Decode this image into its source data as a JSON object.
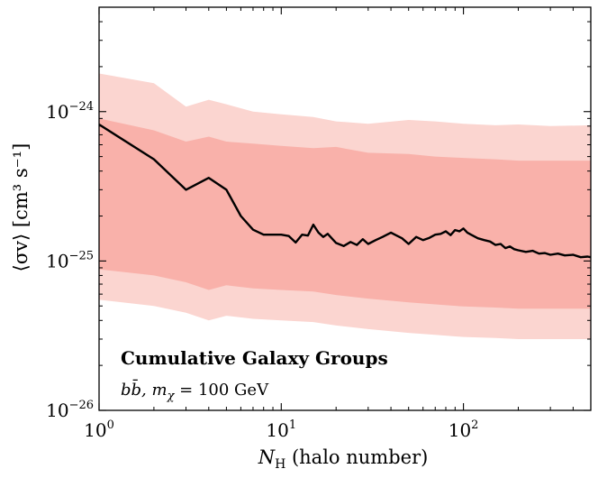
{
  "chart_data": {
    "type": "line",
    "title": "Cumulative Galaxy Groups",
    "subtitle": "bb̄, m_χ = 100 GeV",
    "xlabel": "N_H (halo number)",
    "ylabel": "⟨σv⟩ [cm³ s⁻¹]",
    "xscale": "log",
    "yscale": "log",
    "xlim": [
      1,
      500
    ],
    "ylim": [
      1e-26,
      5e-24
    ],
    "grid": false,
    "x_ticks": [
      {
        "value": 1,
        "label": "10^0"
      },
      {
        "value": 10,
        "label": "10^1"
      },
      {
        "value": 100,
        "label": "10^2"
      }
    ],
    "y_ticks": [
      {
        "value": 1e-26,
        "label": "10^-26"
      },
      {
        "value": 1e-25,
        "label": "10^-25"
      },
      {
        "value": 1e-24,
        "label": "10^-24"
      }
    ],
    "colors": {
      "line": "#000000",
      "band_outer": "#fbd5d0",
      "band_inner": "#f9b1aa"
    },
    "series": [
      {
        "kind": "median",
        "x": [
          1,
          2,
          3,
          4,
          5,
          6,
          7,
          8,
          9,
          10,
          11,
          12,
          13,
          14,
          15,
          16,
          17,
          18,
          20,
          22,
          24,
          26,
          28,
          30,
          33,
          36,
          40,
          43,
          46,
          50,
          55,
          60,
          65,
          70,
          75,
          80,
          85,
          90,
          95,
          100,
          105,
          110,
          120,
          130,
          140,
          150,
          160,
          170,
          180,
          190,
          200,
          220,
          240,
          260,
          280,
          300,
          330,
          360,
          400,
          440,
          480,
          500
        ],
        "y": [
          8.2e-25,
          4.8e-25,
          3e-25,
          3.6e-25,
          3e-25,
          2e-25,
          1.62e-25,
          1.5e-25,
          1.5e-25,
          1.5e-25,
          1.47e-25,
          1.33e-25,
          1.5e-25,
          1.48e-25,
          1.75e-25,
          1.55e-25,
          1.45e-25,
          1.52e-25,
          1.32e-25,
          1.26e-25,
          1.34e-25,
          1.28e-25,
          1.4e-25,
          1.3e-25,
          1.38e-25,
          1.45e-25,
          1.55e-25,
          1.48e-25,
          1.42e-25,
          1.3e-25,
          1.45e-25,
          1.38e-25,
          1.43e-25,
          1.5e-25,
          1.52e-25,
          1.58e-25,
          1.49e-25,
          1.61e-25,
          1.58e-25,
          1.65e-25,
          1.55e-25,
          1.5e-25,
          1.42e-25,
          1.38e-25,
          1.35e-25,
          1.28e-25,
          1.3e-25,
          1.22e-25,
          1.25e-25,
          1.2e-25,
          1.18e-25,
          1.15e-25,
          1.17e-25,
          1.12e-25,
          1.13e-25,
          1.1e-25,
          1.12e-25,
          1.09e-25,
          1.1e-25,
          1.06e-25,
          1.07e-25,
          1.06e-25
        ]
      },
      {
        "kind": "band_outer",
        "x": [
          1,
          2,
          3,
          4,
          5,
          7,
          10,
          15,
          20,
          30,
          50,
          70,
          100,
          150,
          200,
          300,
          500
        ],
        "upper": [
          1.8e-24,
          1.55e-24,
          1.08e-24,
          1.2e-24,
          1.12e-24,
          1e-24,
          9.6e-25,
          9.2e-25,
          8.6e-25,
          8.3e-25,
          8.8e-25,
          8.6e-25,
          8.3e-25,
          8.1e-25,
          8.2e-25,
          8e-25,
          8.1e-25
        ],
        "lower": [
          5.5e-26,
          5e-26,
          4.5e-26,
          4e-26,
          4.3e-26,
          4.1e-26,
          4e-26,
          3.9e-26,
          3.7e-26,
          3.5e-26,
          3.3e-26,
          3.2e-26,
          3.1e-26,
          3.05e-26,
          3e-26,
          3e-26,
          3e-26
        ]
      },
      {
        "kind": "band_inner",
        "x": [
          1,
          2,
          3,
          4,
          5,
          7,
          10,
          15,
          20,
          30,
          50,
          70,
          100,
          150,
          200,
          300,
          500
        ],
        "upper": [
          9e-25,
          7.5e-25,
          6.3e-25,
          6.8e-25,
          6.3e-25,
          6.1e-25,
          5.9e-25,
          5.7e-25,
          5.8e-25,
          5.3e-25,
          5.2e-25,
          5e-25,
          4.9e-25,
          4.8e-25,
          4.7e-25,
          4.7e-25,
          4.7e-25
        ]
      }
    ]
  }
}
